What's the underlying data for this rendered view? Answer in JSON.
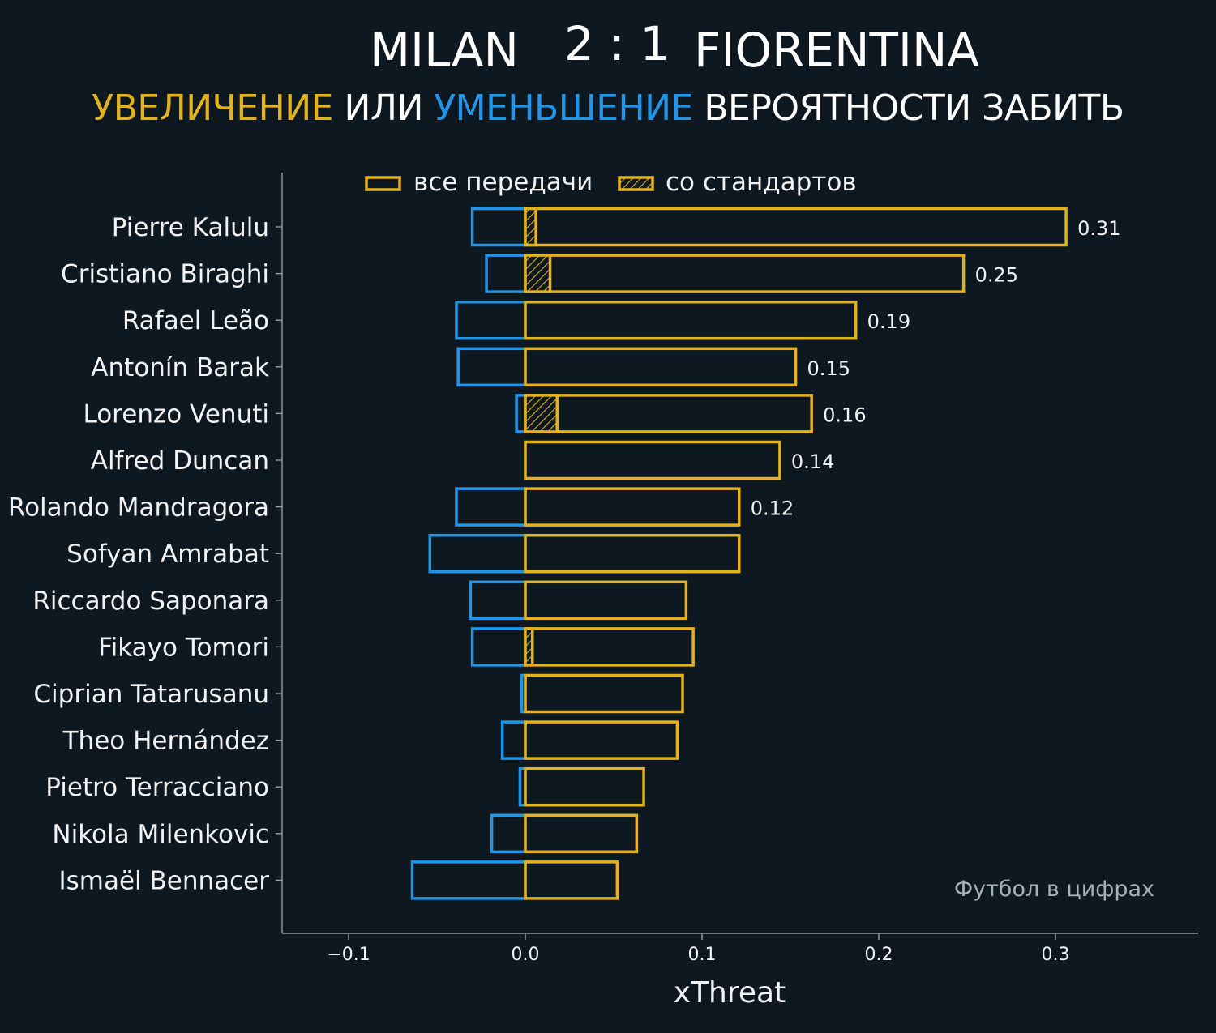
{
  "title": {
    "home": "MILAN",
    "score": "2 : 1",
    "away": "FIORENTINA"
  },
  "subtitle": {
    "part1": "УВЕЛИЧЕНИЕ",
    "part2": " ИЛИ ",
    "part3": "УМЕНЬШЕНИЕ",
    "part4": " ВЕРОЯТНОСТИ ЗАБИТЬ"
  },
  "colors": {
    "background": "#0e1821",
    "increase": "#e3b31f",
    "decrease": "#2196e8",
    "axis": "#8a959c",
    "text": "#f2f2f2"
  },
  "watermark": "Футбол в цифрах",
  "chart_data": {
    "type": "bar",
    "orientation": "horizontal",
    "xlabel": "xThreat",
    "xlim": [
      -0.14,
      0.38
    ],
    "xticks": [
      -0.1,
      0.0,
      0.1,
      0.2,
      0.3
    ],
    "xtick_labels": [
      "−0.1",
      "0.0",
      "0.1",
      "0.2",
      "0.3"
    ],
    "legend": {
      "placement": "top-center",
      "entries": [
        "все передачи",
        "со стандартов"
      ]
    },
    "categories": [
      "Pierre Kalulu",
      "Cristiano Biraghi",
      "Rafael Leão",
      "Antonín Barak",
      "Lorenzo Venuti",
      "Alfred Duncan",
      "Rolando Mandragora",
      "Sofyan Amrabat",
      "Riccardo Saponara",
      "Fikayo Tomori",
      "Ciprian Tatarusanu",
      "Theo Hernández",
      "Pietro Terracciano",
      "Nikola Milenkovic",
      "Ismaël Bennacer"
    ],
    "series": [
      {
        "name": "все передачи (увеличение)",
        "values": [
          0.306,
          0.248,
          0.187,
          0.153,
          0.162,
          0.144,
          0.121,
          0.121,
          0.091,
          0.095,
          0.089,
          0.086,
          0.067,
          0.063,
          0.052
        ]
      },
      {
        "name": "все передачи (уменьшение)",
        "values": [
          -0.03,
          -0.022,
          -0.039,
          -0.038,
          -0.005,
          0.0,
          -0.039,
          -0.054,
          -0.031,
          -0.03,
          -0.002,
          -0.013,
          -0.003,
          -0.019,
          -0.064
        ]
      },
      {
        "name": "со стандартов",
        "values": [
          0.006,
          0.014,
          0.0,
          0.0,
          0.018,
          0.0,
          0.0,
          0.0,
          0.0,
          0.004,
          0.0,
          0.0,
          0.0,
          0.0,
          0.0
        ]
      }
    ],
    "data_labels": [
      "0.31",
      "0.25",
      "0.19",
      "0.15",
      "0.16",
      "0.14",
      "0.12",
      "",
      "",
      "",
      "",
      "",
      "",
      "",
      ""
    ]
  }
}
